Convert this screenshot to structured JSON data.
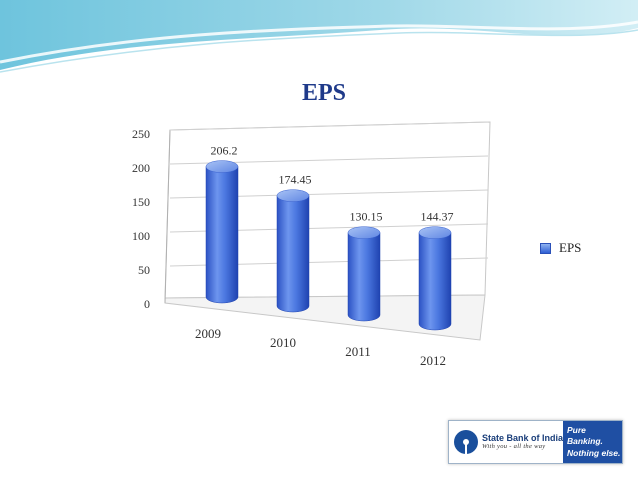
{
  "chart_data": {
    "type": "bar",
    "title": "EPS",
    "categories": [
      "2009",
      "2010",
      "2011",
      "2012"
    ],
    "series": [
      {
        "name": "EPS",
        "values": [
          206.2,
          174.45,
          130.15,
          144.37
        ]
      }
    ],
    "data_labels": [
      "206.2",
      "174.45",
      "130.15",
      "144.37"
    ],
    "ylim": [
      0,
      250
    ],
    "yticks": [
      "0",
      "50",
      "100",
      "150",
      "200",
      "250"
    ],
    "grid": true,
    "legend_position": "right",
    "bar_style": "3d-cylinder",
    "bar_color": "#3a66d6"
  },
  "branding": {
    "bank_name": "State Bank of India",
    "tagline": "With you - all the way",
    "slogan_line1": "Pure Banking.",
    "slogan_line2": "Nothing else."
  }
}
